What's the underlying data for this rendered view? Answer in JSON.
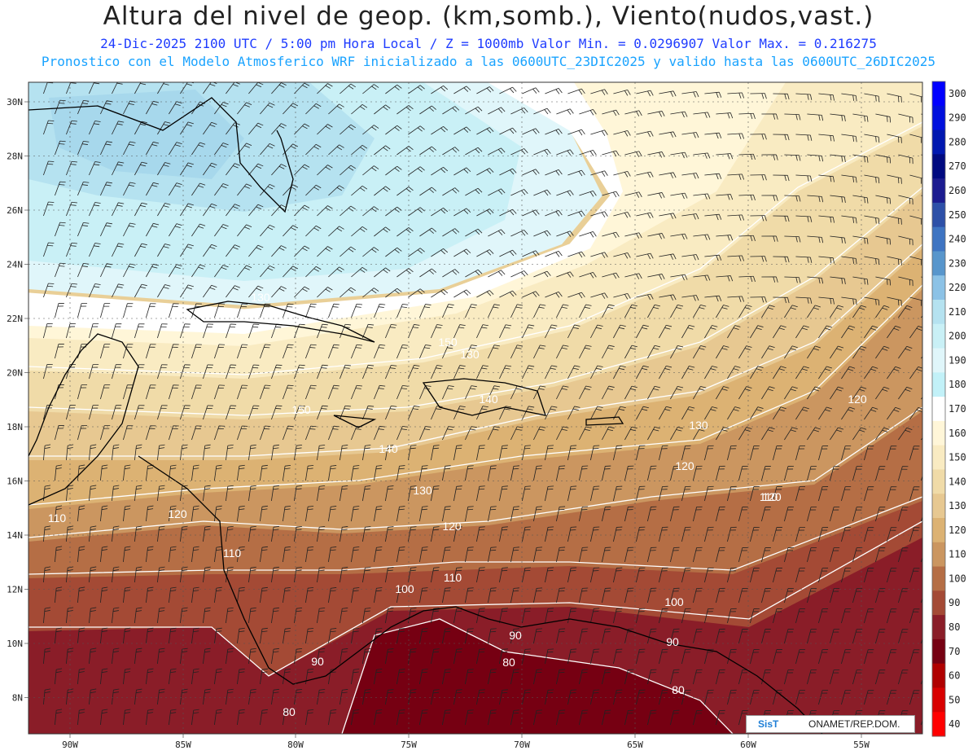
{
  "header": {
    "title": "Altura del nivel de geop. (km,somb.), Viento(nudos,vast.)",
    "subtitle": "24-Dic-2025  2100 UTC / 5:00 pm Hora Local / Z = 1000mb  Valor Min. = 0.0296907  Valor Max. = 0.216275",
    "info": "Pronostico con el Modelo Atmosferico WRF inicializado a las 0600UTC_23DIC2025 y valido hasta las  0600UTC_26DIC2025"
  },
  "map": {
    "lon_labels": [
      "90W",
      "85W",
      "80W",
      "75W",
      "70W",
      "65W",
      "60W",
      "55W"
    ],
    "lat_labels": [
      "30N",
      "28N",
      "26N",
      "24N",
      "22N",
      "20N",
      "18N",
      "16N",
      "14N",
      "12N",
      "10N",
      "8N"
    ],
    "contour_labels": [
      "130",
      "150",
      "140",
      "130",
      "120",
      "110",
      "120",
      "120",
      "110",
      "100",
      "100",
      "90",
      "90",
      "80",
      "80",
      "80",
      "120",
      "130",
      "120",
      "110",
      "130",
      "150",
      "140",
      "110",
      "90"
    ]
  },
  "colorbar": {
    "labels": [
      "300",
      "290",
      "280",
      "270",
      "260",
      "250",
      "240",
      "230",
      "220",
      "210",
      "200",
      "190",
      "180",
      "170",
      "160",
      "150",
      "140",
      "130",
      "120",
      "110",
      "100",
      "90",
      "80",
      "70",
      "60",
      "50",
      "40"
    ],
    "colors": [
      "#0000ff",
      "#0010dd",
      "#0018b0",
      "#000a80",
      "#1c1c90",
      "#2d50a8",
      "#3e74c2",
      "#5896cc",
      "#8cc2e6",
      "#b5e2f0",
      "#c9f0f6",
      "#e0f6fa",
      "#c2f1f8",
      "#ffffff",
      "#fff6d8",
      "#f9ebc2",
      "#f0dba8",
      "#e7c891",
      "#dcb273",
      "#cb9660",
      "#b56e45",
      "#a44a35",
      "#8a1d28",
      "#760012",
      "#b00000",
      "#d80000",
      "#ff0000"
    ]
  },
  "logo": {
    "left": "SisT",
    "right": "ONAMET/REP.DOM."
  }
}
